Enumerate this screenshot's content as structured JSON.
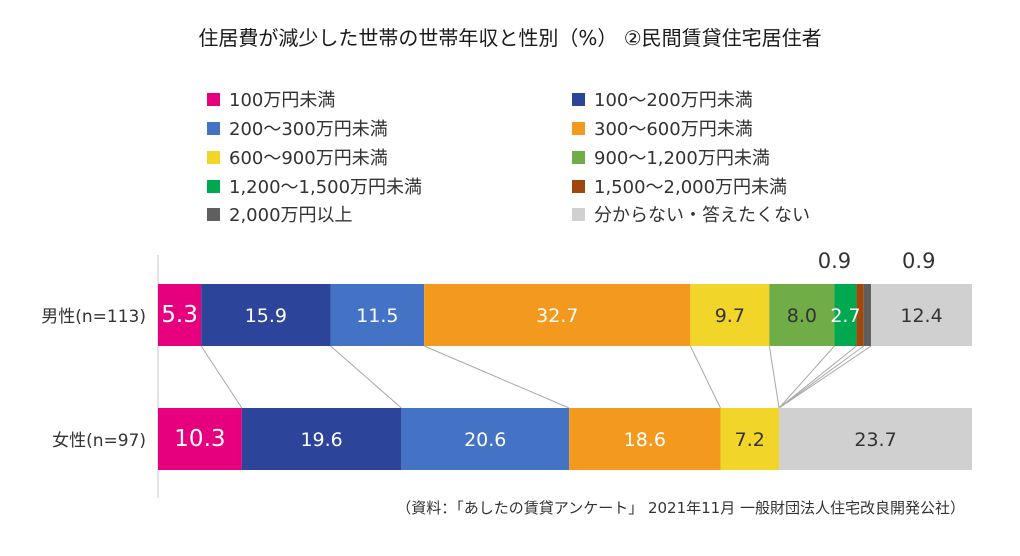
{
  "chart_data": {
    "type": "stacked-bar-horizontal",
    "title": "住居費が減少した世帯の世帯年収と性別（%） ②民間賃貸住宅居住者",
    "legend": [
      {
        "label": "100万円未満",
        "color": "#e6007e"
      },
      {
        "label": "100～200万円未満",
        "color": "#2c4499"
      },
      {
        "label": "200～300万円未満",
        "color": "#4472c4"
      },
      {
        "label": "300～600万円未満",
        "color": "#f39a1e"
      },
      {
        "label": "600～900万円未満",
        "color": "#f2d529"
      },
      {
        "label": "900～1,200万円未満",
        "color": "#70ad47"
      },
      {
        "label": "1,200～1,500万円未満",
        "color": "#00a94f"
      },
      {
        "label": "1,500～2,000万円未満",
        "color": "#9e480e"
      },
      {
        "label": "2,000万円以上",
        "color": "#5f5f5f"
      },
      {
        "label": "分からない・答えたくない",
        "color": "#d0d0d0"
      }
    ],
    "bars": [
      {
        "label": "男性(n=113)",
        "segments": [
          {
            "category": "100万円未満",
            "value": 5.3,
            "label": "5.3"
          },
          {
            "category": "100～200万円未満",
            "value": 15.9,
            "label": "15.9"
          },
          {
            "category": "200～300万円未満",
            "value": 11.5,
            "label": "11.5"
          },
          {
            "category": "300～600万円未満",
            "value": 32.7,
            "label": "32.7"
          },
          {
            "category": "600～900万円未満",
            "value": 9.7,
            "label": "9.7"
          },
          {
            "category": "900～1,200万円未満",
            "value": 8.0,
            "label": "8.0"
          },
          {
            "category": "1,200～1,500万円未満",
            "value": 2.7,
            "label": "2.7"
          },
          {
            "category": "1,500～2,000万円未満",
            "value": 0.9,
            "label": "0.9"
          },
          {
            "category": "2,000万円以上",
            "value": 0.9,
            "label": "0.9"
          },
          {
            "category": "分からない・答えたくない",
            "value": 12.4,
            "label": "12.4"
          }
        ]
      },
      {
        "label": "女性(n=97)",
        "segments": [
          {
            "category": "100万円未満",
            "value": 10.3,
            "label": "10.3"
          },
          {
            "category": "100～200万円未満",
            "value": 19.6,
            "label": "19.6"
          },
          {
            "category": "200～300万円未満",
            "value": 20.6,
            "label": "20.6"
          },
          {
            "category": "300～600万円未満",
            "value": 18.6,
            "label": "18.6"
          },
          {
            "category": "600～900万円未満",
            "value": 7.2,
            "label": "7.2"
          },
          {
            "category": "900～1,200万円未満",
            "value": 0,
            "label": ""
          },
          {
            "category": "1,200～1,500万円未満",
            "value": 0,
            "label": ""
          },
          {
            "category": "1,500～2,000万円未満",
            "value": 0,
            "label": ""
          },
          {
            "category": "2,000万円以上",
            "value": 0,
            "label": ""
          },
          {
            "category": "分からない・答えたくない",
            "value": 23.7,
            "label": "23.7"
          }
        ]
      }
    ],
    "xlim": [
      0,
      100
    ],
    "grid": false,
    "legend_position": "top"
  },
  "source_note": "（資料：「あしたの賃貸アンケート」 2021年11月 一般財団法人住宅改良開発公社）"
}
